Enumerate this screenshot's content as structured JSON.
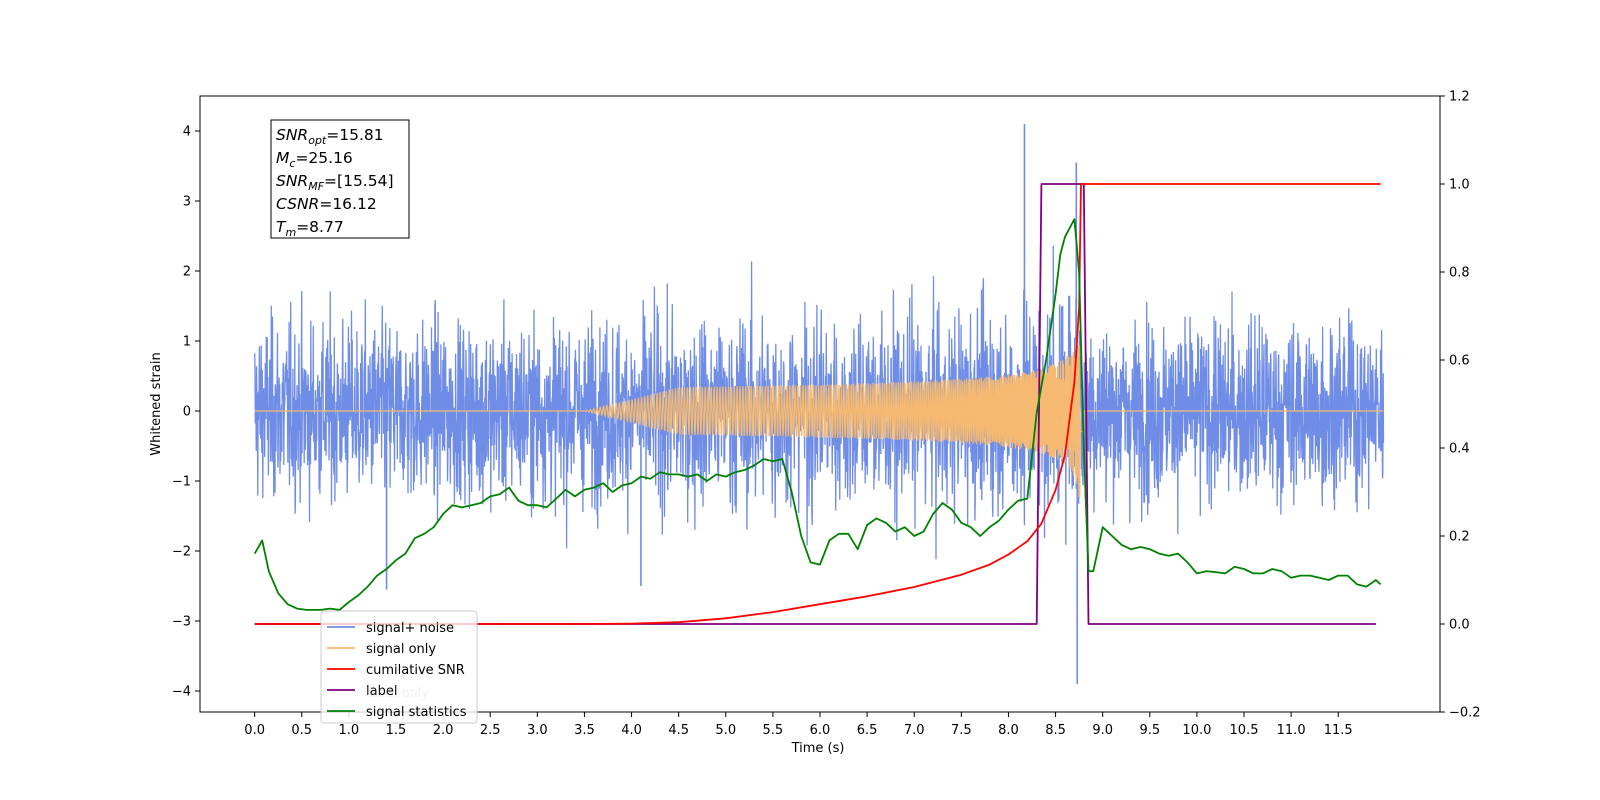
{
  "chart_data": {
    "type": "line",
    "xlabel": "Time (s)",
    "ylabel": "Whitened strain",
    "xlim": [
      -0.58,
      12.58
    ],
    "ylim": [
      -4.3,
      4.5
    ],
    "y2lim": [
      -0.2,
      1.2
    ],
    "x_ticks": [
      "0.0",
      "0.5",
      "1.0",
      "1.5",
      "2.0",
      "2.5",
      "3.0",
      "3.5",
      "4.0",
      "4.5",
      "5.0",
      "5.5",
      "6.0",
      "6.5",
      "7.0",
      "7.5",
      "8.0",
      "8.5",
      "9.0",
      "9.5",
      "10.0",
      "10.5",
      "11.0",
      "11.5"
    ],
    "y_ticks": [
      "4",
      "3",
      "2",
      "1",
      "0",
      "−1",
      "−2",
      "−3",
      "−4"
    ],
    "y2_ticks": [
      "1.2",
      "1.0",
      "0.8",
      "0.6",
      "0.4",
      "0.2",
      "0.0",
      "−0.2"
    ],
    "grid": false,
    "legend_position": "lower-left",
    "info_box": {
      "lines": [
        {
          "main": "SNR",
          "sub": "opt",
          "value": "=15.81"
        },
        {
          "main": "M",
          "sub": "c",
          "value": "=25.16"
        },
        {
          "main": "SNR",
          "sub": "MF",
          "value": "=[15.54]"
        },
        {
          "main": "CSNR",
          "sub": "",
          "value": "=16.12"
        },
        {
          "main": "T",
          "sub": "m",
          "value": "=8.77"
        }
      ]
    },
    "series": [
      {
        "name": "signal+ noise",
        "color": "#6f8de6",
        "axis": "left",
        "note_noise_amplitude": 1.6,
        "spikes": [
          [
            8.17,
            4.1
          ],
          [
            8.72,
            3.55
          ],
          [
            8.73,
            -3.9
          ],
          [
            4.1,
            -2.5
          ],
          [
            1.4,
            -2.55
          ]
        ]
      },
      {
        "name": "signal only",
        "color": "#f5b971",
        "axis": "left",
        "chirp_merger_time": 8.77,
        "chirp_peak_amplitude": 1.95
      },
      {
        "name": "cumilative SNR",
        "color": "#ff0000",
        "axis": "right",
        "x": [
          0,
          3.5,
          4.0,
          4.5,
          5.0,
          5.5,
          6.0,
          6.5,
          7.0,
          7.5,
          7.8,
          8.0,
          8.2,
          8.35,
          8.5,
          8.6,
          8.7,
          8.75,
          8.77,
          11.95
        ],
        "y": [
          0.0,
          0.0,
          0.001,
          0.004,
          0.013,
          0.027,
          0.045,
          0.063,
          0.084,
          0.112,
          0.135,
          0.158,
          0.188,
          0.228,
          0.305,
          0.385,
          0.55,
          0.72,
          1.0,
          1.0
        ]
      },
      {
        "name": "label",
        "color": "#800080",
        "axis": "right",
        "x": [
          0,
          8.3,
          8.35,
          8.8,
          8.85,
          11.9
        ],
        "y": [
          0.0,
          0.0,
          1.0,
          1.0,
          0.0,
          0.0
        ]
      },
      {
        "name": "label only",
        "color": "#c8a2c8",
        "axis": "right",
        "hidden_behind_legend": true
      },
      {
        "name": "signal statistics",
        "color": "#008000",
        "axis": "right",
        "x": [
          0.0,
          0.08,
          0.15,
          0.25,
          0.35,
          0.45,
          0.55,
          0.7,
          0.8,
          0.9,
          1.0,
          1.1,
          1.2,
          1.3,
          1.4,
          1.5,
          1.6,
          1.7,
          1.8,
          1.9,
          2.0,
          2.1,
          2.2,
          2.3,
          2.4,
          2.5,
          2.6,
          2.7,
          2.8,
          2.9,
          3.0,
          3.1,
          3.2,
          3.3,
          3.4,
          3.5,
          3.6,
          3.7,
          3.8,
          3.9,
          4.0,
          4.1,
          4.2,
          4.3,
          4.4,
          4.5,
          4.6,
          4.7,
          4.8,
          4.9,
          5.0,
          5.1,
          5.2,
          5.3,
          5.4,
          5.5,
          5.6,
          5.7,
          5.8,
          5.9,
          6.0,
          6.1,
          6.2,
          6.3,
          6.4,
          6.5,
          6.6,
          6.7,
          6.8,
          6.9,
          7.0,
          7.1,
          7.2,
          7.3,
          7.4,
          7.5,
          7.6,
          7.7,
          7.8,
          7.9,
          8.0,
          8.1,
          8.2,
          8.3,
          8.4,
          8.5,
          8.55,
          8.6,
          8.65,
          8.7,
          8.75,
          8.8,
          8.85,
          8.9,
          9.0,
          9.1,
          9.2,
          9.3,
          9.4,
          9.5,
          9.6,
          9.7,
          9.8,
          9.9,
          10.0,
          10.1,
          10.2,
          10.3,
          10.4,
          10.5,
          10.6,
          10.7,
          10.8,
          10.9,
          11.0,
          11.1,
          11.2,
          11.3,
          11.4,
          11.5,
          11.6,
          11.7,
          11.8,
          11.9,
          11.95
        ],
        "y": [
          0.16,
          0.19,
          0.12,
          0.07,
          0.045,
          0.035,
          0.032,
          0.032,
          0.035,
          0.032,
          0.05,
          0.065,
          0.085,
          0.11,
          0.125,
          0.145,
          0.16,
          0.195,
          0.205,
          0.22,
          0.25,
          0.27,
          0.265,
          0.27,
          0.275,
          0.29,
          0.295,
          0.31,
          0.28,
          0.27,
          0.27,
          0.265,
          0.285,
          0.305,
          0.29,
          0.305,
          0.31,
          0.32,
          0.3,
          0.315,
          0.32,
          0.335,
          0.33,
          0.345,
          0.34,
          0.34,
          0.335,
          0.34,
          0.325,
          0.34,
          0.335,
          0.345,
          0.35,
          0.36,
          0.375,
          0.37,
          0.375,
          0.3,
          0.2,
          0.14,
          0.135,
          0.19,
          0.205,
          0.205,
          0.17,
          0.225,
          0.24,
          0.23,
          0.21,
          0.22,
          0.2,
          0.21,
          0.25,
          0.275,
          0.26,
          0.23,
          0.22,
          0.2,
          0.22,
          0.235,
          0.26,
          0.28,
          0.285,
          0.48,
          0.6,
          0.75,
          0.84,
          0.88,
          0.9,
          0.92,
          0.8,
          0.4,
          0.12,
          0.12,
          0.22,
          0.2,
          0.18,
          0.17,
          0.175,
          0.17,
          0.16,
          0.155,
          0.16,
          0.14,
          0.115,
          0.12,
          0.118,
          0.115,
          0.13,
          0.125,
          0.115,
          0.115,
          0.125,
          0.12,
          0.105,
          0.11,
          0.11,
          0.105,
          0.1,
          0.11,
          0.11,
          0.09,
          0.085,
          0.1,
          0.09
        ]
      }
    ]
  }
}
